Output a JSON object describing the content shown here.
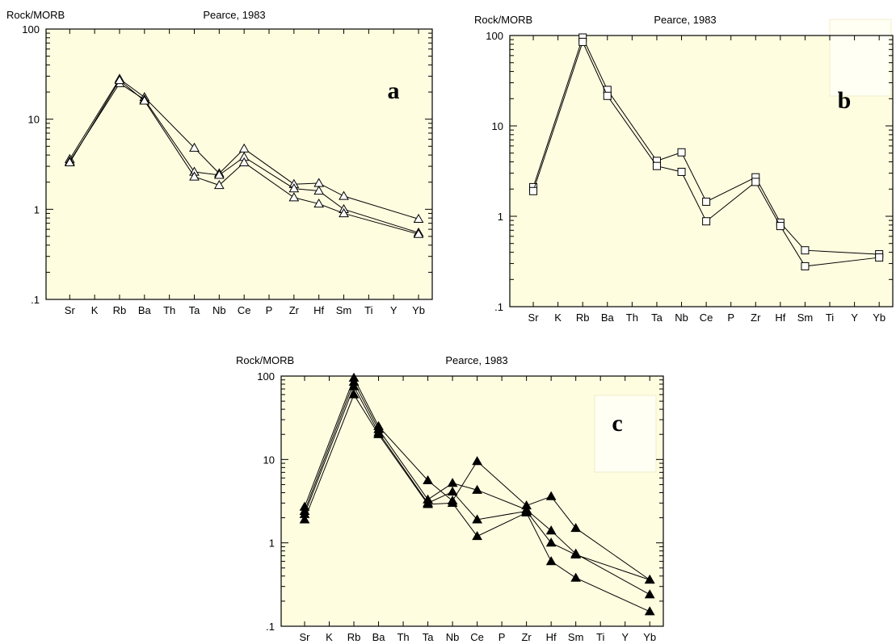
{
  "chart_data": [
    {
      "id": "a",
      "type": "line",
      "title": "Pearce, 1983",
      "ylabel": "Rock/MORB",
      "panel_label": "a",
      "yscale": "log",
      "ylim": [
        0.1,
        100
      ],
      "yticks": [
        ".1",
        "1",
        "10",
        "100"
      ],
      "categories": [
        "Sr",
        "K",
        "Rb",
        "Ba",
        "Th",
        "Ta",
        "Nb",
        "Ce",
        "P",
        "Zr",
        "Hf",
        "Sm",
        "Ti",
        "Y",
        "Yb"
      ],
      "marker": "open-triangle",
      "label_box": false,
      "series": [
        {
          "values": [
            3.6,
            null,
            28,
            17.5,
            null,
            4.8,
            2.5,
            4.7,
            null,
            1.9,
            1.95,
            1.4,
            null,
            null,
            0.78
          ]
        },
        {
          "values": [
            3.4,
            null,
            25,
            16.5,
            null,
            2.6,
            2.4,
            3.8,
            null,
            1.7,
            1.6,
            1.0,
            null,
            null,
            0.55
          ]
        },
        {
          "values": [
            3.3,
            null,
            27,
            16,
            null,
            2.3,
            1.85,
            3.3,
            null,
            1.35,
            1.15,
            0.9,
            null,
            null,
            0.53
          ]
        }
      ]
    },
    {
      "id": "b",
      "type": "line",
      "title": "Pearce, 1983",
      "ylabel": "Rock/MORB",
      "panel_label": "b",
      "yscale": "log",
      "ylim": [
        0.1,
        100
      ],
      "yticks": [
        ".1",
        "1",
        "10",
        "100"
      ],
      "categories": [
        "Sr",
        "K",
        "Rb",
        "Ba",
        "Th",
        "Ta",
        "Nb",
        "Ce",
        "P",
        "Zr",
        "Hf",
        "Sm",
        "Ti",
        "Y",
        "Yb"
      ],
      "marker": "open-square",
      "label_box": true,
      "series": [
        {
          "values": [
            2.1,
            null,
            95,
            25,
            null,
            4.1,
            5.1,
            1.45,
            null,
            2.7,
            0.85,
            0.42,
            null,
            null,
            0.38
          ]
        },
        {
          "values": [
            1.9,
            null,
            85,
            21.5,
            null,
            3.6,
            3.1,
            0.88,
            null,
            2.4,
            0.78,
            0.28,
            null,
            null,
            0.35
          ]
        }
      ]
    },
    {
      "id": "c",
      "type": "line",
      "title": "Pearce, 1983",
      "ylabel": "Rock/MORB",
      "panel_label": "c",
      "yscale": "log",
      "ylim": [
        0.1,
        100
      ],
      "yticks": [
        ".1",
        "1",
        "10",
        "100"
      ],
      "categories": [
        "Sr",
        "K",
        "Rb",
        "Ba",
        "Th",
        "Ta",
        "Nb",
        "Ce",
        "P",
        "Zr",
        "Hf",
        "Sm",
        "Ti",
        "Y",
        "Yb"
      ],
      "marker": "filled-triangle",
      "label_box": true,
      "series": [
        {
          "values": [
            2.7,
            null,
            95,
            25,
            null,
            5.6,
            3.2,
            9.5,
            null,
            2.8,
            3.6,
            1.5,
            null,
            null,
            0.36
          ]
        },
        {
          "values": [
            2.4,
            null,
            85,
            23,
            null,
            3.3,
            5.2,
            4.3,
            null,
            2.5,
            1.4,
            0.74,
            null,
            null,
            0.24
          ]
        },
        {
          "values": [
            2.2,
            null,
            75,
            21,
            null,
            3.0,
            4.1,
            1.9,
            null,
            2.4,
            1.0,
            0.72,
            null,
            null,
            0.36
          ]
        },
        {
          "values": [
            1.9,
            null,
            60,
            20,
            null,
            2.9,
            3.0,
            1.2,
            null,
            2.3,
            0.6,
            0.38,
            null,
            null,
            0.15
          ]
        }
      ]
    }
  ]
}
